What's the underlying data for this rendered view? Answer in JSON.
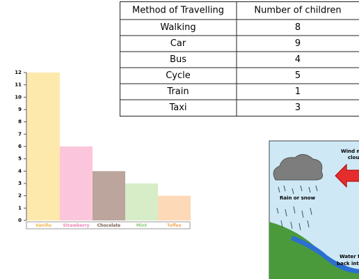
{
  "table": {
    "header": [
      "Method of Travelling",
      "Number of children"
    ],
    "rows": [
      [
        "Walking",
        8
      ],
      [
        "Car",
        9
      ],
      [
        "Bus",
        4
      ],
      [
        "Cycle",
        5
      ],
      [
        "Train",
        1
      ],
      [
        "Taxi",
        3
      ]
    ]
  },
  "chart_data": {
    "type": "bar",
    "categories": [
      "Vanilla",
      "Strawberry",
      "Chocolate",
      "Mint",
      "Toffee"
    ],
    "values": [
      12,
      6,
      4,
      3,
      2
    ],
    "colors": [
      "#fde9ab",
      "#fbc6dc",
      "#bba59c",
      "#d6edc8",
      "#fdd9b7"
    ],
    "label_colors": [
      "#f3b545",
      "#ef7fb3",
      "#7a5c4f",
      "#8cc872",
      "#f6a860"
    ],
    "ylim": [
      0,
      12
    ],
    "yticks": [
      0,
      1,
      2,
      3,
      4,
      5,
      6,
      7,
      8,
      9,
      10,
      11,
      12
    ]
  },
  "diagram": {
    "labels": [
      "Wind mo",
      "cloud",
      "Rain or snow",
      "Water fl",
      "back int"
    ]
  }
}
